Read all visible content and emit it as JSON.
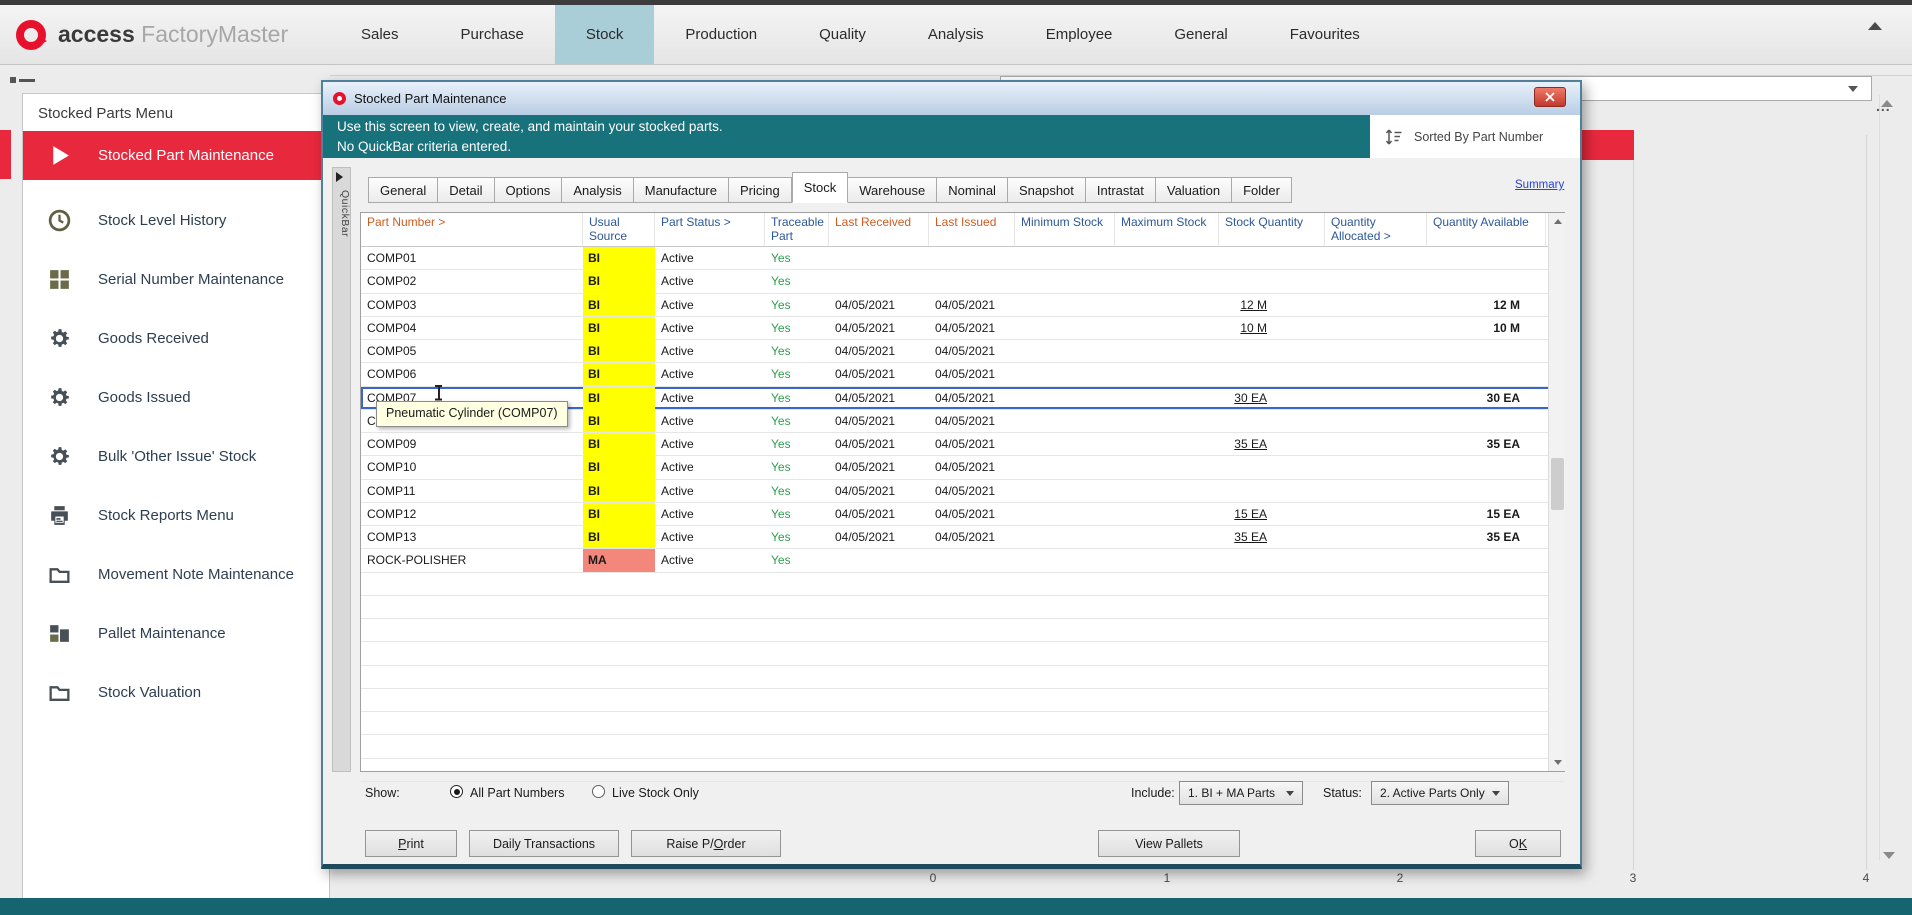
{
  "topbar": {
    "brand_bold": "access",
    "brand_light": "FactoryMaster",
    "items": [
      {
        "label": "Sales"
      },
      {
        "label": "Purchase"
      },
      {
        "label": "Stock",
        "active": true
      },
      {
        "label": "Production"
      },
      {
        "label": "Quality"
      },
      {
        "label": "Analysis"
      },
      {
        "label": "Employee"
      },
      {
        "label": "General"
      },
      {
        "label": "Favourites"
      }
    ]
  },
  "sidebar": {
    "title": "Stocked Parts Menu",
    "items": [
      {
        "label": "Stocked Part Maintenance",
        "icon": "play",
        "active": true
      },
      {
        "label": "Stock Level History",
        "icon": "clock"
      },
      {
        "label": "Serial Number Maintenance",
        "icon": "grid"
      },
      {
        "label": "Goods Received",
        "icon": "gear"
      },
      {
        "label": "Goods Issued",
        "icon": "gear"
      },
      {
        "label": "Bulk 'Other Issue' Stock",
        "icon": "gear"
      },
      {
        "label": "Stock Reports Menu",
        "icon": "printer"
      },
      {
        "label": "Movement Note Maintenance",
        "icon": "folder"
      },
      {
        "label": "Pallet Maintenance",
        "icon": "pallet"
      },
      {
        "label": "Stock Valuation",
        "icon": "folder"
      }
    ]
  },
  "dialog": {
    "title": "Stocked Part Maintenance",
    "banner_line1": "Use this screen to view, create, and maintain your stocked parts.",
    "banner_line2": "No QuickBar criteria entered.",
    "sorted_by": "Sorted By Part Number",
    "quickbar_label": "QuickBar",
    "summary_link": "Summary",
    "tooltip": "Pneumatic Cylinder (COMP07)",
    "tabs": [
      {
        "label": "General"
      },
      {
        "label": "Detail"
      },
      {
        "label": "Options"
      },
      {
        "label": "Analysis"
      },
      {
        "label": "Manufacture"
      },
      {
        "label": "Pricing"
      },
      {
        "label": "Stock",
        "active": true
      },
      {
        "label": "Warehouse"
      },
      {
        "label": "Nominal"
      },
      {
        "label": "Snapshot"
      },
      {
        "label": "Intrastat"
      },
      {
        "label": "Valuation"
      },
      {
        "label": "Folder"
      }
    ]
  },
  "table": {
    "columns": [
      {
        "label": "Part Number >",
        "tone": "orange"
      },
      {
        "label": "Usual Source",
        "tone": "blue"
      },
      {
        "label": "Part Status >",
        "tone": "blue"
      },
      {
        "label": "Traceable Part",
        "tone": "blue"
      },
      {
        "label": "Last Received",
        "tone": "orange"
      },
      {
        "label": "Last Issued",
        "tone": "orange"
      },
      {
        "label": "Minimum Stock",
        "tone": "blue"
      },
      {
        "label": "Maximum Stock",
        "tone": "blue"
      },
      {
        "label": "Stock Quantity",
        "tone": "blue"
      },
      {
        "label": "Quantity Allocated >",
        "tone": "blue"
      },
      {
        "label": "Quantity Available",
        "tone": "blue"
      }
    ],
    "rows": [
      {
        "part": "COMP01",
        "source": "BI",
        "source_color": "yellow",
        "status": "Active",
        "traceable": "Yes",
        "received": "",
        "issued": "",
        "min": "",
        "max": "",
        "stock_qty": "",
        "qty_allocated": "",
        "qty_available": ""
      },
      {
        "part": "COMP02",
        "source": "BI",
        "source_color": "yellow",
        "status": "Active",
        "traceable": "Yes",
        "received": "",
        "issued": "",
        "min": "",
        "max": "",
        "stock_qty": "",
        "qty_allocated": "",
        "qty_available": ""
      },
      {
        "part": "COMP03",
        "source": "BI",
        "source_color": "yellow",
        "status": "Active",
        "traceable": "Yes",
        "received": "04/05/2021",
        "issued": "04/05/2021",
        "min": "",
        "max": "",
        "stock_qty": "12 M",
        "qty_allocated": "",
        "qty_available": "12 M"
      },
      {
        "part": "COMP04",
        "source": "BI",
        "source_color": "yellow",
        "status": "Active",
        "traceable": "Yes",
        "received": "04/05/2021",
        "issued": "04/05/2021",
        "min": "",
        "max": "",
        "stock_qty": "10 M",
        "qty_allocated": "",
        "qty_available": "10 M"
      },
      {
        "part": "COMP05",
        "source": "BI",
        "source_color": "yellow",
        "status": "Active",
        "traceable": "Yes",
        "received": "04/05/2021",
        "issued": "04/05/2021",
        "min": "",
        "max": "",
        "stock_qty": "",
        "qty_allocated": "",
        "qty_available": ""
      },
      {
        "part": "COMP06",
        "source": "BI",
        "source_color": "yellow",
        "status": "Active",
        "traceable": "Yes",
        "received": "04/05/2021",
        "issued": "04/05/2021",
        "min": "",
        "max": "",
        "stock_qty": "",
        "qty_allocated": "",
        "qty_available": ""
      },
      {
        "part": "COMP07",
        "source": "BI",
        "source_color": "yellow",
        "status": "Active",
        "traceable": "Yes",
        "received": "04/05/2021",
        "issued": "04/05/2021",
        "min": "",
        "max": "",
        "stock_qty": "30 EA",
        "qty_allocated": "",
        "qty_available": "30 EA",
        "selected": true
      },
      {
        "part": "COMP08",
        "source": "BI",
        "source_color": "yellow",
        "status": "Active",
        "traceable": "Yes",
        "received": "04/05/2021",
        "issued": "04/05/2021",
        "min": "",
        "max": "",
        "stock_qty": "",
        "qty_allocated": "",
        "qty_available": ""
      },
      {
        "part": "COMP09",
        "source": "BI",
        "source_color": "yellow",
        "status": "Active",
        "traceable": "Yes",
        "received": "04/05/2021",
        "issued": "04/05/2021",
        "min": "",
        "max": "",
        "stock_qty": "35 EA",
        "qty_allocated": "",
        "qty_available": "35 EA"
      },
      {
        "part": "COMP10",
        "source": "BI",
        "source_color": "yellow",
        "status": "Active",
        "traceable": "Yes",
        "received": "04/05/2021",
        "issued": "04/05/2021",
        "min": "",
        "max": "",
        "stock_qty": "",
        "qty_allocated": "",
        "qty_available": ""
      },
      {
        "part": "COMP11",
        "source": "BI",
        "source_color": "yellow",
        "status": "Active",
        "traceable": "Yes",
        "received": "04/05/2021",
        "issued": "04/05/2021",
        "min": "",
        "max": "",
        "stock_qty": "",
        "qty_allocated": "",
        "qty_available": ""
      },
      {
        "part": "COMP12",
        "source": "BI",
        "source_color": "yellow",
        "status": "Active",
        "traceable": "Yes",
        "received": "04/05/2021",
        "issued": "04/05/2021",
        "min": "",
        "max": "",
        "stock_qty": "15 EA",
        "qty_allocated": "",
        "qty_available": "15 EA"
      },
      {
        "part": "COMP13",
        "source": "BI",
        "source_color": "yellow",
        "status": "Active",
        "traceable": "Yes",
        "received": "04/05/2021",
        "issued": "04/05/2021",
        "min": "",
        "max": "",
        "stock_qty": "35 EA",
        "qty_allocated": "",
        "qty_available": "35 EA"
      },
      {
        "part": "ROCK-POLISHER",
        "source": "MA",
        "source_color": "salmon",
        "status": "Active",
        "traceable": "Yes",
        "received": "",
        "issued": "",
        "min": "",
        "max": "",
        "stock_qty": "",
        "qty_allocated": "",
        "qty_available": ""
      }
    ]
  },
  "footer": {
    "show_label": "Show:",
    "radio_all": "All Part Numbers",
    "radio_live": "Live Stock Only",
    "include_label": "Include:",
    "include_value": "1. BI + MA Parts",
    "status_label": "Status:",
    "status_value": "2. Active Parts Only"
  },
  "buttons": {
    "print_pre": "",
    "print_u": "P",
    "print_post": "rint",
    "daily": "Daily Transactions",
    "raise_pre": "Raise P/",
    "raise_u": "O",
    "raise_post": "rder",
    "pallets": "View Pallets",
    "ok_pre": "O",
    "ok_u": "K",
    "ok_post": ""
  },
  "background": {
    "axis_labels": [
      "0",
      "1",
      "2",
      "3",
      "4"
    ],
    "ellipsis": "..."
  },
  "colors": {
    "accent_red": "#e8293d",
    "banner_teal": "#17727b",
    "nav_highlight": "#a9ced8",
    "source_yellow": "#ffff00",
    "source_salmon": "#f4877b",
    "traceable_green": "#2f9e4f",
    "header_orange": "#cf5b21",
    "header_blue": "#2b579a",
    "link_blue": "#2743d8",
    "bottom_strip": "#156570"
  }
}
